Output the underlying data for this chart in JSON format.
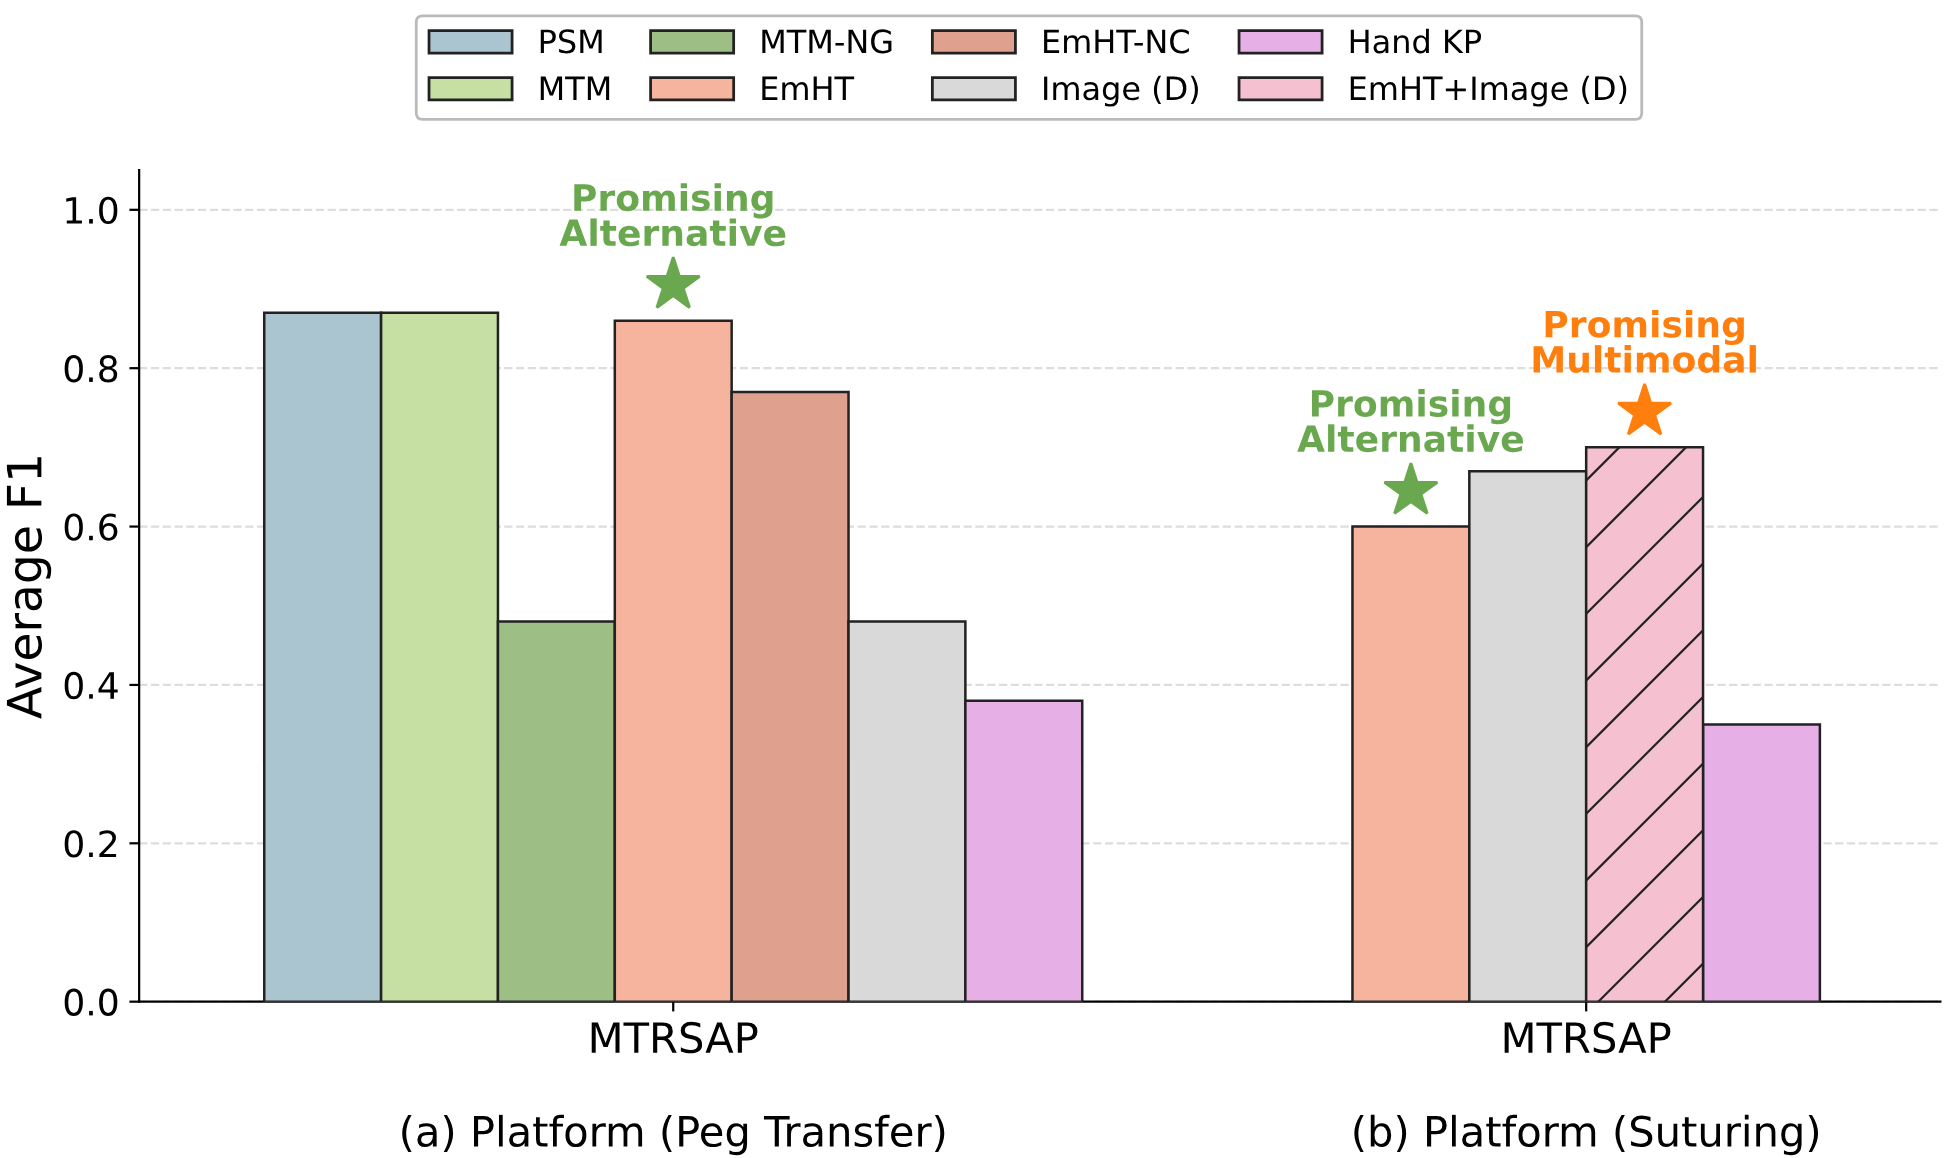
{
  "chart_data": {
    "type": "bar",
    "ylabel": "Average F1",
    "categories": [
      "MTRSAP",
      "MTRSAP"
    ],
    "series": [
      {
        "name": "PSM",
        "color": "#aac5d0",
        "values": [
          0.87,
          null
        ]
      },
      {
        "name": "MTM",
        "color": "#c6e0a4",
        "values": [
          0.87,
          null
        ]
      },
      {
        "name": "MTM-NG",
        "color": "#9dbf86",
        "values": [
          0.48,
          null
        ]
      },
      {
        "name": "EmHT",
        "color": "#f6b49e",
        "values": [
          0.86,
          0.6
        ]
      },
      {
        "name": "EmHT-NC",
        "color": "#e0a08e",
        "values": [
          0.77,
          null
        ]
      },
      {
        "name": "Image (D)",
        "color": "#d9d9d9",
        "values": [
          0.48,
          0.67
        ]
      },
      {
        "name": "Hand KP",
        "color": "#e6b0e6",
        "values": [
          0.38,
          0.35
        ]
      },
      {
        "name": "EmHT+Image (D)",
        "color": "#f5c0d0",
        "values": [
          null,
          0.7
        ]
      }
    ],
    "ylim": [
      0,
      1.05
    ],
    "yticks": [
      {
        "value": 0,
        "label": "0.0"
      },
      {
        "value": 0.2,
        "label": "0.2"
      },
      {
        "value": 0.4,
        "label": "0.4"
      },
      {
        "value": 0.6,
        "label": "0.6"
      },
      {
        "value": 0.8,
        "label": "0.8"
      },
      {
        "value": 1.0,
        "label": "1.0"
      }
    ],
    "grid": "y",
    "legend": "top",
    "annotations": [
      "(a) Platform (Peg Transfer)",
      "(b) Platform (Suturing)",
      "Promising\nAlternative",
      "Promising\nAlternative",
      "Promising\nMultimodal"
    ]
  }
}
